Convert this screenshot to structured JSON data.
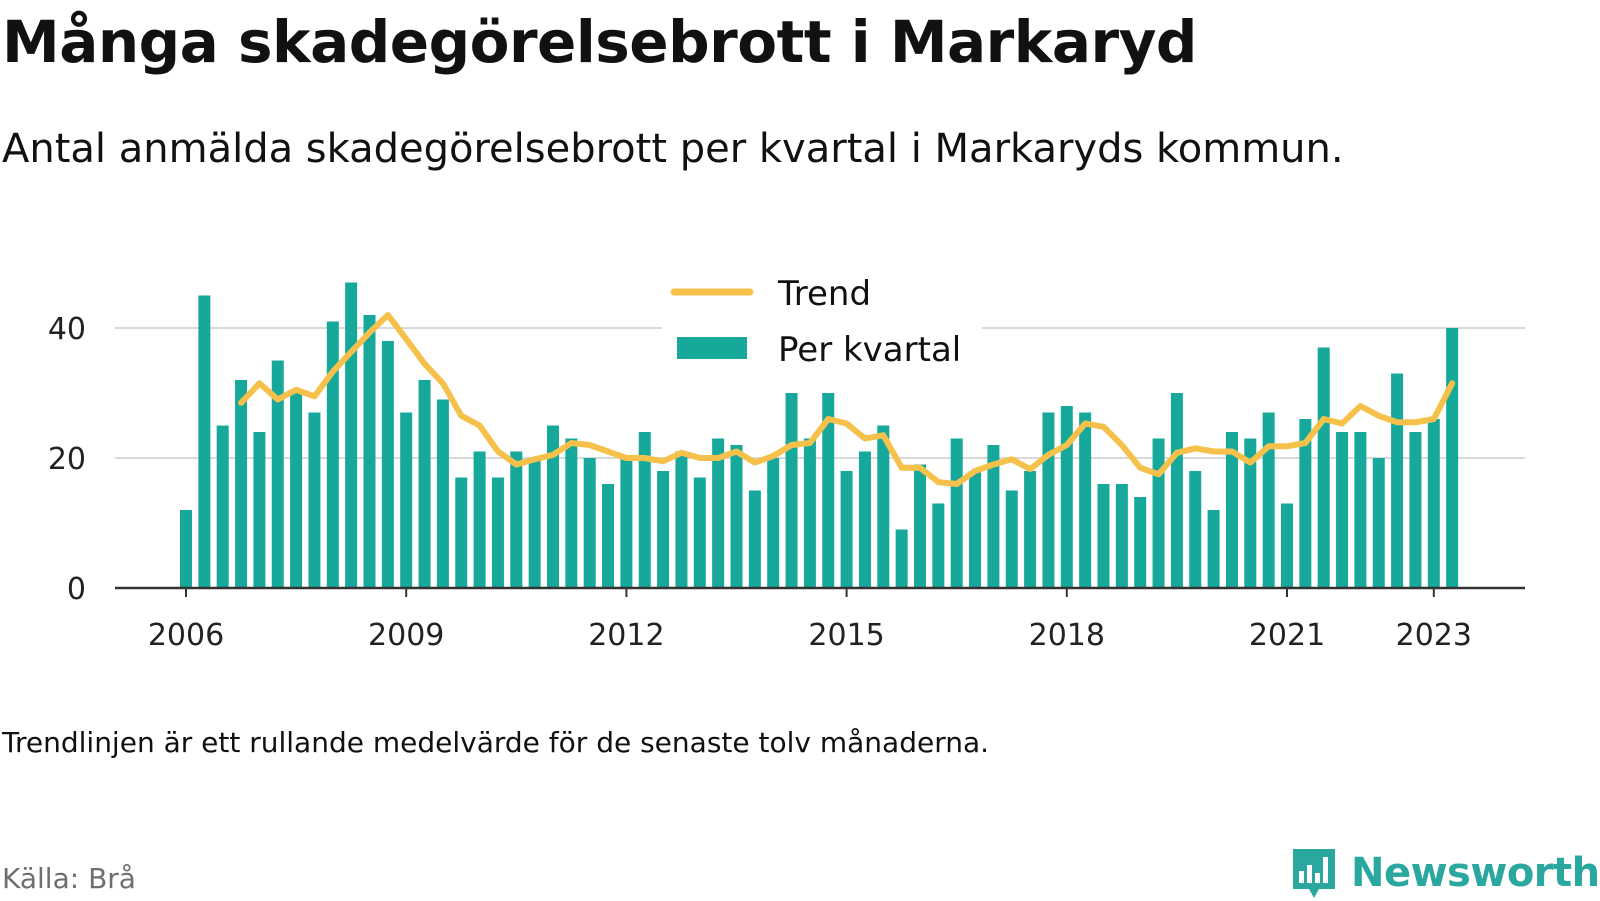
{
  "title": "Många skadegörelsebrott i Markaryd",
  "subtitle": "Antal anmälda skadegörelsebrott per kvartal i Markaryds kommun.",
  "footnote": "Trendlinjen är ett rullande medelvärde för de senaste tolv månaderna.",
  "source": "Källa: Brå",
  "brand": "Newsworthy",
  "colors": {
    "bars": "#16a89b",
    "trend": "#f5c14b",
    "grid": "#d9d9d9",
    "axis": "#333333",
    "brand": "#2aa79e"
  },
  "chart_data": {
    "type": "bar",
    "start": {
      "year": 2006,
      "quarter": 1
    },
    "ylim": [
      0,
      45
    ],
    "yticks": [
      0,
      20,
      40
    ],
    "xticks": [
      "2006",
      "2009",
      "2012",
      "2015",
      "2018",
      "2021",
      "2023"
    ],
    "grid": true,
    "legend_position": "top-center",
    "series": [
      {
        "name": "Per kvartal",
        "kind": "bar",
        "values": [
          12,
          45,
          25,
          32,
          24,
          35,
          30,
          27,
          41,
          47,
          42,
          38,
          27,
          32,
          29,
          17,
          21,
          17,
          21,
          20,
          25,
          23,
          20,
          16,
          20,
          24,
          18,
          21,
          17,
          23,
          22,
          15,
          20,
          30,
          23,
          30,
          18,
          21,
          25,
          9,
          19,
          13,
          23,
          18,
          22,
          15,
          18,
          27,
          28,
          27,
          16,
          16,
          14,
          23,
          30,
          18,
          12,
          24,
          23,
          27,
          13,
          26,
          37,
          24,
          24,
          20,
          33,
          24,
          26,
          40
        ]
      },
      {
        "name": "Trend",
        "kind": "line",
        "start_index": 3,
        "values": [
          28.5,
          31.5,
          29,
          30.5,
          29.5,
          33.3,
          36.3,
          39.3,
          42,
          38.3,
          34.5,
          31.5,
          26.5,
          25,
          21,
          19,
          19.8,
          20.5,
          22.3,
          22,
          21,
          20,
          20,
          19.5,
          20.8,
          20,
          20,
          21,
          19.3,
          20.3,
          22,
          22.3,
          26,
          25.3,
          23,
          23.5,
          18.5,
          18.5,
          16.3,
          16,
          18,
          19,
          19.8,
          18.3,
          20.5,
          22,
          25.3,
          24.8,
          22,
          18.5,
          17.5,
          20.8,
          21.5,
          21,
          21,
          19.3,
          21.8,
          21.8,
          22.3,
          26,
          25.3,
          28,
          26.5,
          25.5,
          25.5,
          26,
          31.5
        ]
      }
    ]
  }
}
